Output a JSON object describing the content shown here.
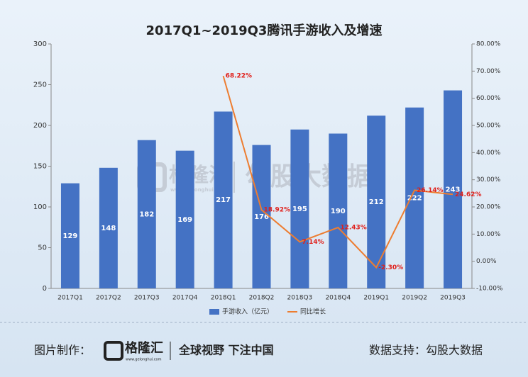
{
  "chart_data": {
    "type": "bar_line",
    "title": "2017Q1~2019Q3腾讯手游收入及增速",
    "categories": [
      "2017Q1",
      "2017Q2",
      "2017Q3",
      "2017Q4",
      "2018Q1",
      "2018Q2",
      "2018Q3",
      "2018Q4",
      "2019Q1",
      "2019Q2",
      "2019Q3"
    ],
    "series": [
      {
        "name": "手游收入（亿元）",
        "type": "bar",
        "color": "#4472c4",
        "values": [
          129,
          148,
          182,
          169,
          217,
          176,
          195,
          190,
          212,
          222,
          243
        ]
      },
      {
        "name": "同比增长",
        "type": "line",
        "axis": "y2",
        "color": "#ed7d31",
        "values": [
          null,
          null,
          null,
          null,
          68.22,
          18.92,
          7.14,
          12.43,
          -2.3,
          26.14,
          24.62
        ],
        "value_labels": [
          null,
          null,
          null,
          null,
          "68.22%",
          "18.92%",
          "7.14%",
          "12.43%",
          "-2.30%",
          "26.14%",
          "24.62%"
        ]
      }
    ],
    "ylim": [
      0,
      300
    ],
    "yticks": [
      0,
      50,
      100,
      150,
      200,
      250,
      300
    ],
    "y2lim": [
      -10,
      80
    ],
    "y2ticks": [
      {
        "value": -10,
        "label": "-10.00%"
      },
      {
        "value": 0,
        "label": "0.00%"
      },
      {
        "value": 10,
        "label": "10.00%"
      },
      {
        "value": 20,
        "label": "20.00%"
      },
      {
        "value": 30,
        "label": "30.00%"
      },
      {
        "value": 40,
        "label": "40.00%"
      },
      {
        "value": 50,
        "label": "50.00%"
      },
      {
        "value": 60,
        "label": "60.00%"
      },
      {
        "value": 70,
        "label": "70.00%"
      },
      {
        "value": 80,
        "label": "80.00%"
      }
    ],
    "legend": "bottom"
  },
  "watermark": {
    "brand": "格隆汇",
    "url": "www.gelonghui.com",
    "partner": "勾股大数据"
  },
  "footer": {
    "made_by": "图片制作：",
    "brand": "格隆汇",
    "url": "www.gelonghui.com",
    "slogan": "全球视野 下注中国",
    "source": "数据支持：勾股大数据"
  }
}
